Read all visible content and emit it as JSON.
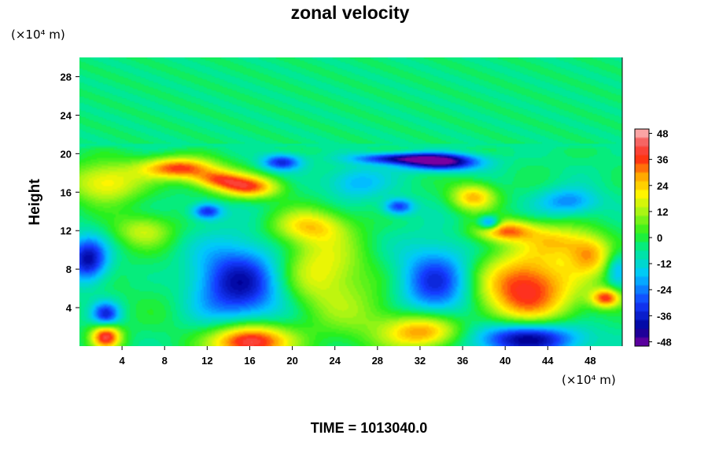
{
  "chart_data": {
    "type": "heatmap",
    "title": "zonal velocity",
    "xlabel": "",
    "ylabel": "Height",
    "x_unit": "(×10⁴ m)",
    "y_unit": "(×10⁴ m)",
    "xlim": [
      0,
      51
    ],
    "ylim": [
      0,
      30
    ],
    "x_ticks": [
      "4",
      "8",
      "12",
      "16",
      "20",
      "24",
      "28",
      "32",
      "36",
      "40",
      "44",
      "48"
    ],
    "y_ticks": [
      "4",
      "8",
      "12",
      "16",
      "20",
      "24",
      "28"
    ],
    "colorbar": {
      "range": [
        -50,
        50
      ],
      "ticks": [
        "48",
        "36",
        "24",
        "12",
        "0",
        "-12",
        "-24",
        "-36",
        "-48"
      ]
    },
    "background_value": -4,
    "features": [
      {
        "x": 15,
        "y": 6.5,
        "value": -40,
        "sx": 3.2,
        "sy": 3.0
      },
      {
        "x": 33.5,
        "y": 6.5,
        "value": -34,
        "sx": 2.5,
        "sy": 2.8
      },
      {
        "x": 42,
        "y": 6.0,
        "value": 40,
        "sx": 3.3,
        "sy": 2.8
      },
      {
        "x": 42,
        "y": 0.8,
        "value": -48,
        "sx": 3.5,
        "sy": 1.2
      },
      {
        "x": 16,
        "y": 0.5,
        "value": 48,
        "sx": 2.6,
        "sy": 1.3
      },
      {
        "x": 32.5,
        "y": 1.5,
        "value": 32,
        "sx": 2.5,
        "sy": 1.3
      },
      {
        "x": 2.5,
        "y": 1.0,
        "value": 40,
        "sx": 1.0,
        "sy": 0.9
      },
      {
        "x": 0.8,
        "y": 9.0,
        "value": -40,
        "sx": 1.3,
        "sy": 1.6
      },
      {
        "x": 2.5,
        "y": 3.3,
        "value": -34,
        "sx": 0.9,
        "sy": 0.9
      },
      {
        "x": 22.5,
        "y": 8.0,
        "value": 20,
        "sx": 3.0,
        "sy": 3.0
      },
      {
        "x": 27,
        "y": 3.0,
        "value": 6,
        "sx": 3.5,
        "sy": 2.5
      },
      {
        "x": 8.5,
        "y": 5.5,
        "value": 0,
        "sx": 3.0,
        "sy": 3.5
      },
      {
        "x": 9.5,
        "y": 18.5,
        "value": 36,
        "sx": 2.5,
        "sy": 0.8
      },
      {
        "x": 16,
        "y": 16.5,
        "value": 32,
        "sx": 2.0,
        "sy": 0.8
      },
      {
        "x": 13,
        "y": 17.3,
        "value": 26,
        "sx": 1.8,
        "sy": 0.7
      },
      {
        "x": 2.5,
        "y": 17,
        "value": 22,
        "sx": 2.5,
        "sy": 1.5
      },
      {
        "x": 34,
        "y": 19.1,
        "value": -48,
        "sx": 2.5,
        "sy": 0.6
      },
      {
        "x": 30,
        "y": 19.5,
        "value": -36,
        "sx": 3.0,
        "sy": 0.4
      },
      {
        "x": 19,
        "y": 19.1,
        "value": -34,
        "sx": 1.3,
        "sy": 0.6
      },
      {
        "x": 12,
        "y": 14,
        "value": -34,
        "sx": 1.0,
        "sy": 0.6
      },
      {
        "x": 30,
        "y": 14.5,
        "value": -32,
        "sx": 1.0,
        "sy": 0.6
      },
      {
        "x": 37,
        "y": 15.5,
        "value": 26,
        "sx": 1.5,
        "sy": 1.0
      },
      {
        "x": 40,
        "y": 12,
        "value": 30,
        "sx": 2.0,
        "sy": 0.8
      },
      {
        "x": 38.5,
        "y": 12.8,
        "value": -36,
        "sx": 0.7,
        "sy": 0.5
      },
      {
        "x": 46,
        "y": 15,
        "value": -24,
        "sx": 2.0,
        "sy": 1.0
      },
      {
        "x": 48,
        "y": 9.5,
        "value": 24,
        "sx": 1.5,
        "sy": 1.5
      },
      {
        "x": 49.5,
        "y": 5.0,
        "value": 34,
        "sx": 1.0,
        "sy": 0.7
      },
      {
        "x": 45,
        "y": 11,
        "value": 16,
        "sx": 2.0,
        "sy": 1.2
      },
      {
        "x": 6,
        "y": 12,
        "value": 14,
        "sx": 2.0,
        "sy": 1.2
      },
      {
        "x": 21.5,
        "y": 12.5,
        "value": 18,
        "sx": 2.5,
        "sy": 1.2
      },
      {
        "x": 26,
        "y": 17,
        "value": -20,
        "sx": 2.0,
        "sy": 1.2
      },
      {
        "x": 50.5,
        "y": 8,
        "value": -20,
        "sx": 0.7,
        "sy": 1.2
      }
    ],
    "upper_layer": {
      "from_y": 21,
      "value": -4
    }
  },
  "footer_text": "TIME = 1013040.0"
}
